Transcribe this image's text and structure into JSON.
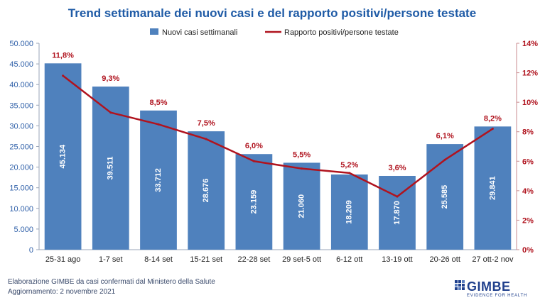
{
  "chart_data": {
    "type": "bar",
    "title": "Trend settimanale dei nuovi casi e del rapporto positivi/persone testate",
    "categories": [
      "25-31 ago",
      "1-7 set",
      "8-14 set",
      "15-21 set",
      "22-28 set",
      "29 set-5 ott",
      "6-12 ott",
      "13-19 ott",
      "20-26 ott",
      "27 ott-2 nov"
    ],
    "series": [
      {
        "name": "Nuovi casi settimanali",
        "type": "bar",
        "axis": "left",
        "values": [
          45134,
          39511,
          33712,
          28676,
          23159,
          21060,
          18209,
          17870,
          25585,
          29841
        ],
        "labels": [
          "45.134",
          "39.511",
          "33.712",
          "28.676",
          "23.159",
          "21.060",
          "18.209",
          "17.870",
          "25.585",
          "29.841"
        ],
        "color": "#4f81bd"
      },
      {
        "name": "Rapporto positivi/persone testate",
        "type": "line",
        "axis": "right",
        "values": [
          11.8,
          9.3,
          8.5,
          7.5,
          6.0,
          5.5,
          5.2,
          3.6,
          6.1,
          8.2
        ],
        "labels": [
          "11,8%",
          "9,3%",
          "8,5%",
          "7,5%",
          "6,0%",
          "5,5%",
          "5,2%",
          "3,6%",
          "6,1%",
          "8,2%"
        ],
        "color": "#b0131e"
      }
    ],
    "ylim": [
      0,
      50000
    ],
    "y_ticks": [
      "0",
      "5.000",
      "10.000",
      "15.000",
      "20.000",
      "25.000",
      "30.000",
      "35.000",
      "40.000",
      "45.000",
      "50.000"
    ],
    "y2lim": [
      0,
      14
    ],
    "y2_ticks": [
      "0%",
      "2%",
      "4%",
      "6%",
      "8%",
      "10%",
      "12%",
      "14%"
    ],
    "legend": "top",
    "grid": false
  },
  "colors": {
    "title": "#1f5ba6",
    "left_axis": "#2e5fa8",
    "right_axis": "#b0131e"
  },
  "footer": {
    "line1": "Elaborazione GIMBE da casi confermati dal Ministero della Salute",
    "line2": "Aggiornamento:  2 novembre  2021"
  },
  "logo": {
    "text": "GIMBE",
    "subtitle": "EVIDENCE FOR HEALTH"
  }
}
